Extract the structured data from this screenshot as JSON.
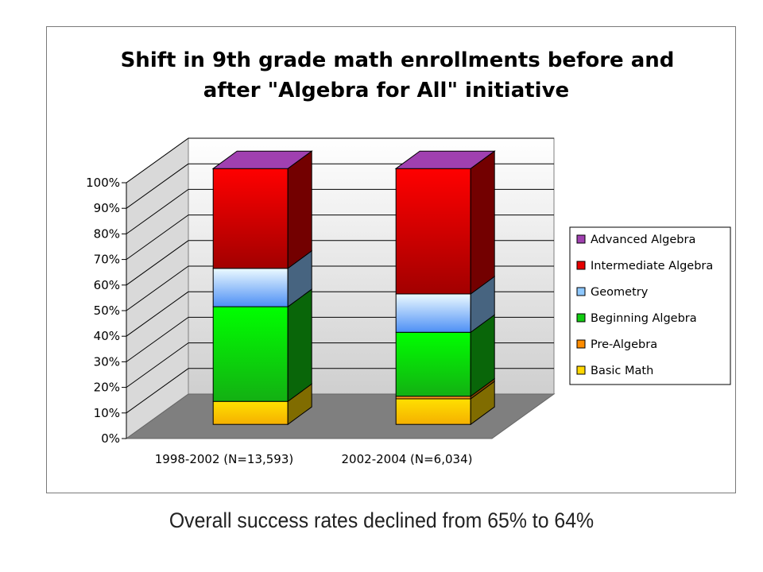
{
  "chart_data": {
    "type": "bar",
    "stacked": true,
    "three_d": true,
    "title_lines": [
      "Shift in 9th grade math enrollments before and",
      "after \"Algebra for All\" initiative"
    ],
    "categories": [
      "1998-2002 (N=13,593)",
      "2002-2004 (N=6,034)"
    ],
    "series": [
      {
        "name": "Basic Math",
        "values": [
          9,
          10
        ],
        "color": "#ffd700"
      },
      {
        "name": "Pre-Algebra",
        "values": [
          0,
          1
        ],
        "color": "#ff8c00"
      },
      {
        "name": "Beginning Algebra",
        "values": [
          37,
          25
        ],
        "color": "#11cc11"
      },
      {
        "name": "Geometry",
        "values": [
          15,
          15
        ],
        "color": "#8ec8ff"
      },
      {
        "name": "Intermediate Algebra",
        "values": [
          39,
          49
        ],
        "color": "#e60000"
      },
      {
        "name": "Advanced Algebra",
        "values": [
          0,
          0
        ],
        "color": "#a040b0"
      }
    ],
    "y_ticks": [
      "0%",
      "10%",
      "20%",
      "30%",
      "40%",
      "50%",
      "60%",
      "70%",
      "80%",
      "90%",
      "100%"
    ],
    "ylim": [
      0,
      100
    ],
    "grid": true,
    "legend_position": "right"
  },
  "caption": "Overall success rates declined from 65% to 64%"
}
